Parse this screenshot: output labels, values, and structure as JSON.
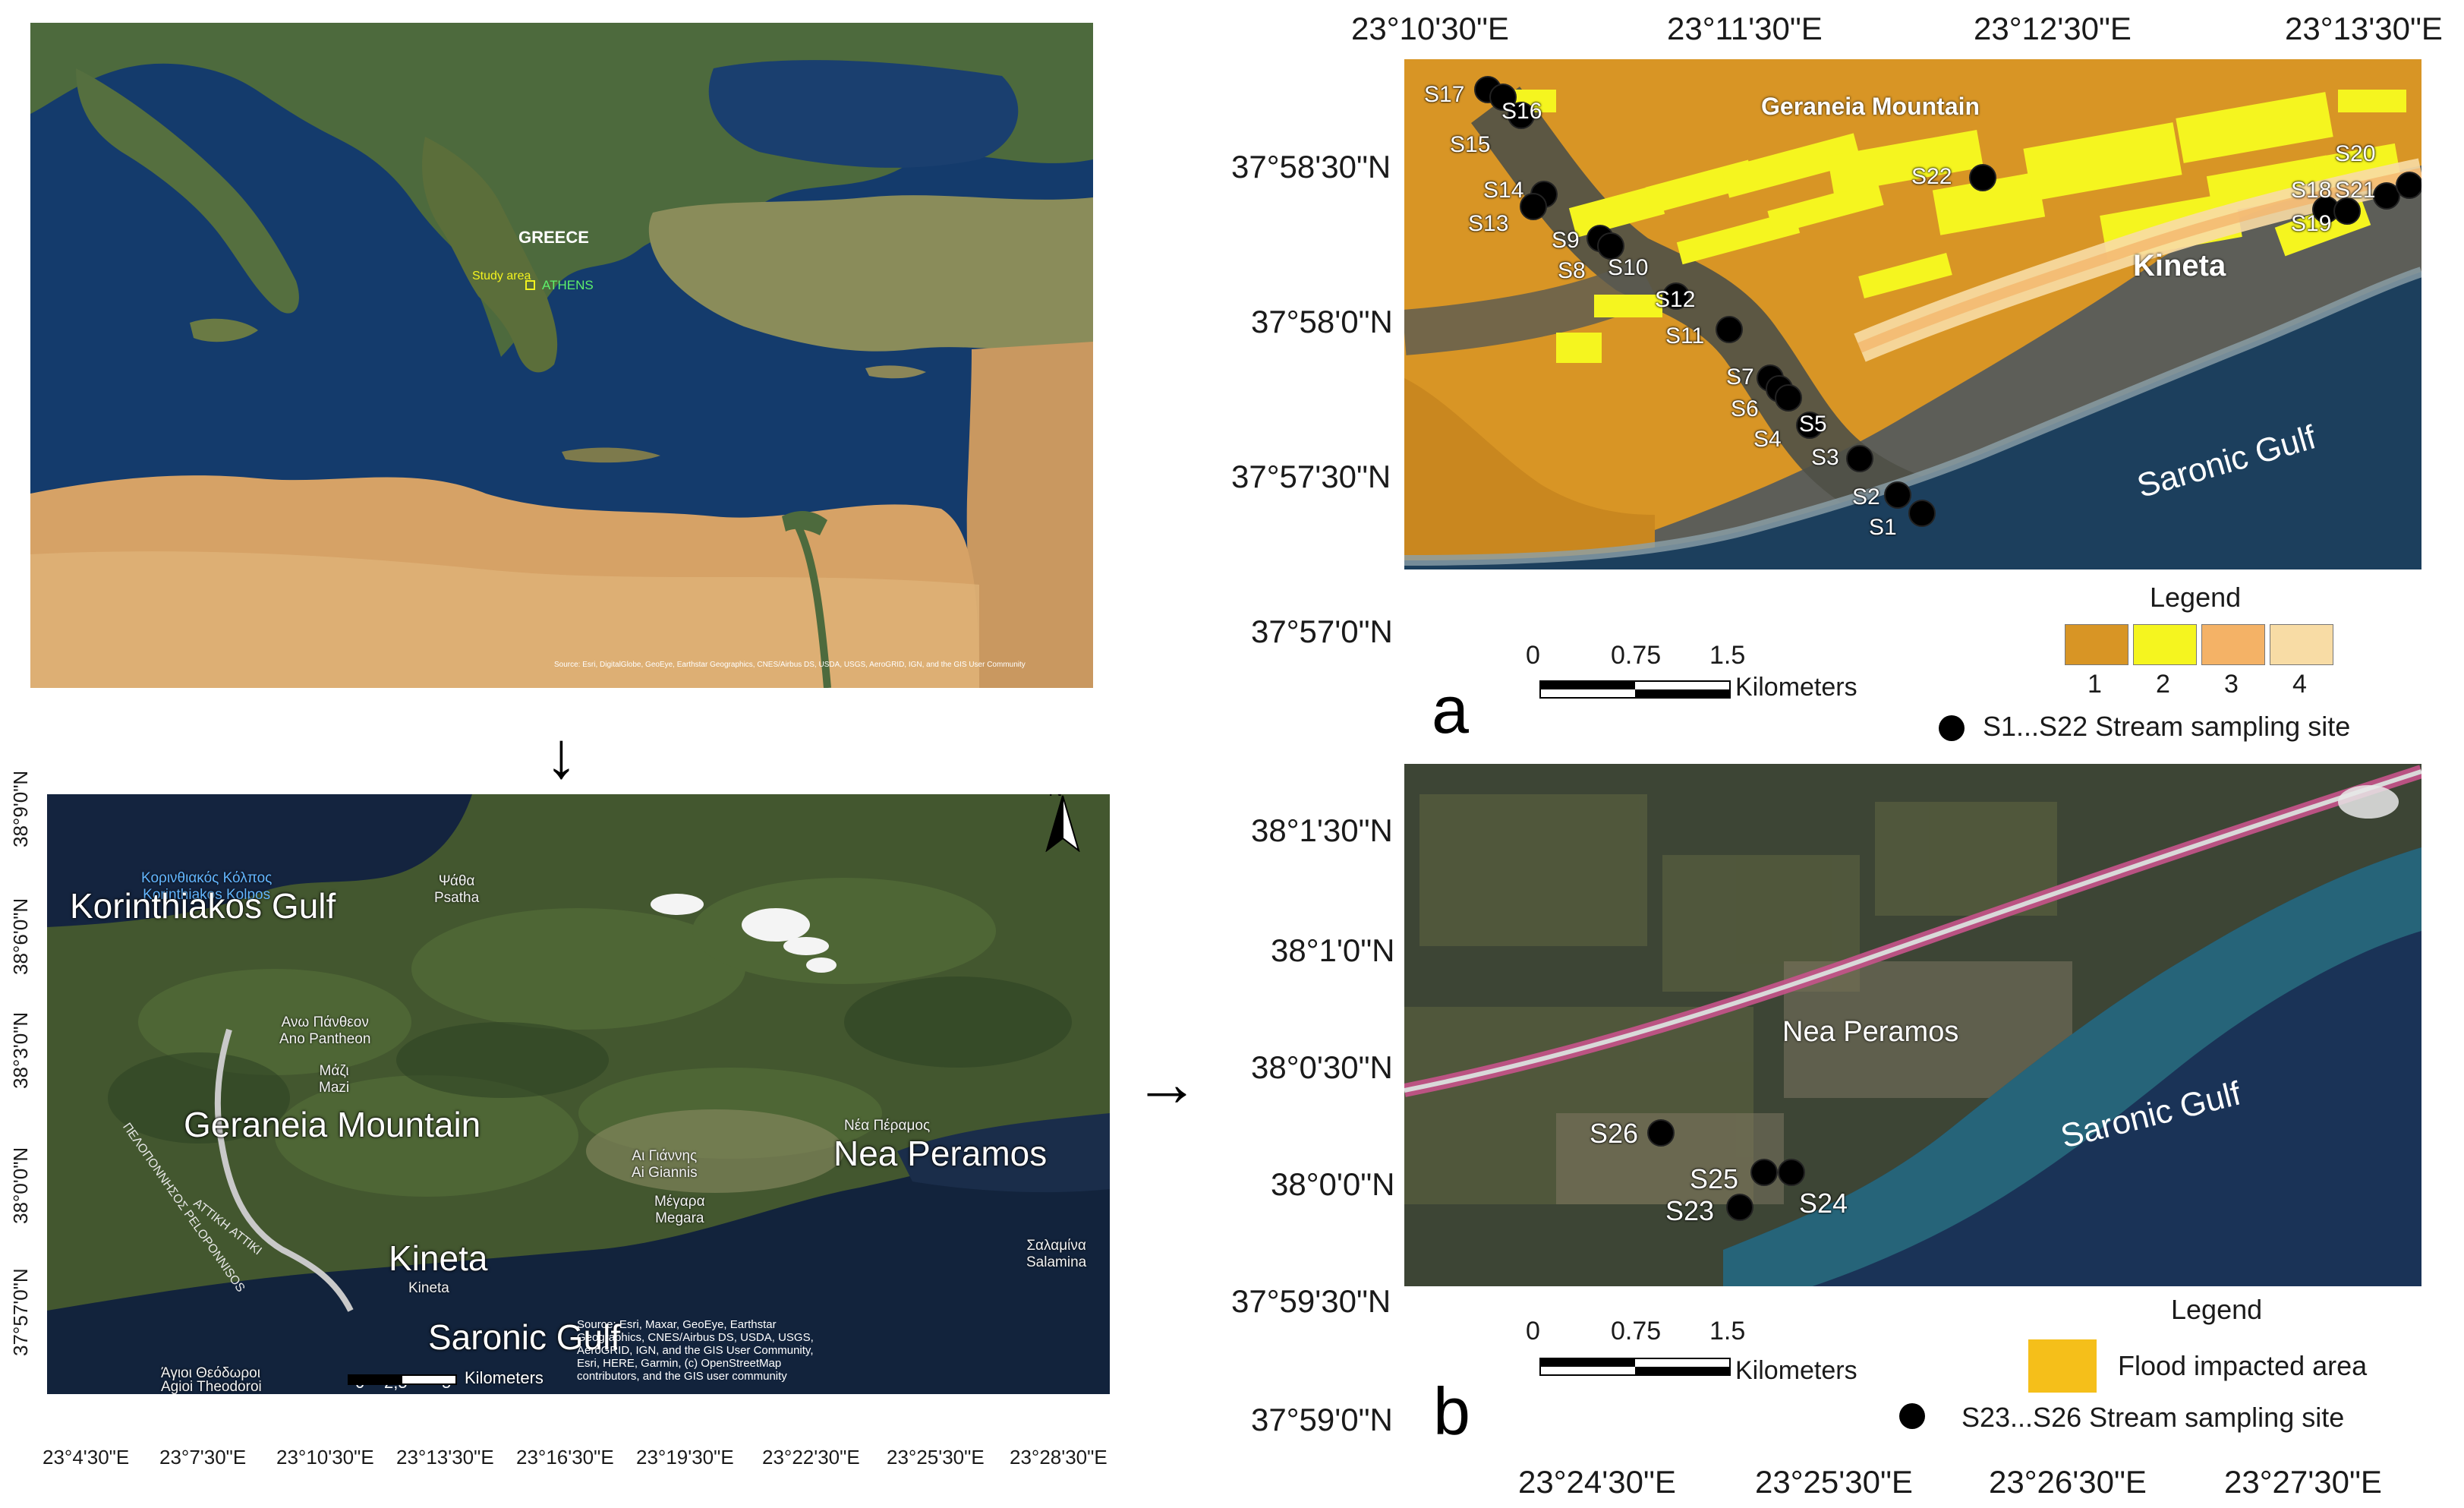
{
  "colors": {
    "sea_deep": "#123a6b",
    "sea_shallow": "#2d7f8c",
    "desert": "#d8a86a",
    "land_green": "#3f5a2a",
    "flood_class_1": "#d89525",
    "flood_class_2": "#f5f51f",
    "flood_class_3": "#f4b266",
    "flood_class_4": "#f8dca5",
    "flood_impacted": "#f5bf1a",
    "site_marker": "#000000",
    "road": "#c9c9c9",
    "highway_pink": "#c7538b"
  },
  "overview": {
    "greece_label": "GREECE",
    "study_area_label": "Study area",
    "athens_label": "ATHENS",
    "credit": "Source: Esri, DigitalGlobe, GeoEye, Earthstar Geographics, CNES/Airbus DS, USDA, USGS, AeroGRID, IGN, and the GIS User Community"
  },
  "arrows": {
    "down": "↓",
    "right": "→"
  },
  "regional": {
    "north_label": "N",
    "korinthiakos_gr_1": "Κορινθιακός Κόλπος",
    "korinthiakos_gr_2": "Korinthiakos Kolpos",
    "korinthiakos_gulf": "Korinthiakos Gulf",
    "psatha_gr": "Ψάθα",
    "psatha": "Psatha",
    "ano_pantheon_gr": "Ανω Πάνθεον",
    "ano_pantheon": "Ano Pantheon",
    "mazi_gr": "Μάζι",
    "mazi": "Mazi",
    "geraneia_mountain": "Geraneia Mountain",
    "ai_giannis_gr": "Αι Γιάννης",
    "ai_giannis": "Ai Giannis",
    "megara_gr": "Μέγαρα",
    "megara": "Megara",
    "nea_peramos_gr": "Νέα Πέραμος",
    "nea_peramos": "Nea Peramos",
    "salamina_gr": "Σαλαμίνα",
    "salamina": "Salamina",
    "kineta": "Kineta",
    "kineta_small": "Kineta",
    "saronic_gulf": "Saronic Gulf",
    "agioi_gr": "Άγιοι Θεόδωροι",
    "agioi": "Agioi Theodoroi",
    "attiki": "ΑΤΤΙΚΗ ATTIKI",
    "peloponnisos": "ΠΕΛΟΠΟΝΝΗΣΟΣ PELOPONNISOS",
    "credit": "Source: Esri, Maxar, GeoEye, Earthstar Geographics, CNES/Airbus DS, USDA, USGS, AeroGRID, IGN, and the GIS User Community, Esri, HERE, Garmin, (c) OpenStreetMap contributors, and the GIS user community",
    "scale_ticks": [
      "0",
      "2,5",
      "5"
    ],
    "scale_unit": "Kilometers",
    "lat_ticks": [
      "38°9'0\"N",
      "38°6'0\"N",
      "38°3'0\"N",
      "38°3'0\"N",
      "38°0'0\"N",
      "37°57'0\"N"
    ],
    "lon_ticks": [
      "23°4'30\"E",
      "23°7'30\"E",
      "23°10'30\"E",
      "23°13'30\"E",
      "23°16'30\"E",
      "23°19'30\"E",
      "23°22'30\"E",
      "23°25'30\"E",
      "23°28'30\"E"
    ]
  },
  "panel_a": {
    "letter": "a",
    "lon_ticks": [
      "23°10'30\"E",
      "23°11'30\"E",
      "23°12'30\"E",
      "23°13'30\"E"
    ],
    "lat_ticks": [
      "37°58'30\"N",
      "37°58'0\"N",
      "37°57'30\"N",
      "37°57'0\"N"
    ],
    "geraneia_mountain": "Geraneia Mountain",
    "kineta": "Kineta",
    "saronic_gulf": "Saronic Gulf",
    "sites": [
      "S1",
      "S2",
      "S3",
      "S4",
      "S5",
      "S6",
      "S7",
      "S8",
      "S9",
      "S10",
      "S11",
      "S12",
      "S13",
      "S14",
      "S15",
      "S16",
      "S17",
      "S18",
      "S19",
      "S20",
      "S21",
      "S22"
    ],
    "scale_ticks": [
      "0",
      "0.75",
      "1.5"
    ],
    "scale_unit": "Kilometers",
    "legend_title": "Legend",
    "legend_classes": [
      "1",
      "2",
      "3",
      "4"
    ],
    "legend_site": "S1...S22 Stream sampling site"
  },
  "panel_b": {
    "letter": "b",
    "lon_ticks": [
      "23°24'30\"E",
      "23°25'30\"E",
      "23°26'30\"E",
      "23°27'30\"E"
    ],
    "lat_ticks": [
      "38°1'30\"N",
      "38°1'0\"N",
      "38°0'30\"N",
      "38°0'0\"N",
      "37°59'30\"N",
      "37°59'0\"N"
    ],
    "nea_peramos": "Nea Peramos",
    "saronic_gulf": "Saronic Gulf",
    "sites": [
      "S23",
      "S24",
      "S25",
      "S26"
    ],
    "scale_ticks": [
      "0",
      "0.75",
      "1.5"
    ],
    "scale_unit": "Kilometers",
    "legend_title": "Legend",
    "legend_flood": "Flood impacted area",
    "legend_site": "S23...S26 Stream sampling site"
  }
}
